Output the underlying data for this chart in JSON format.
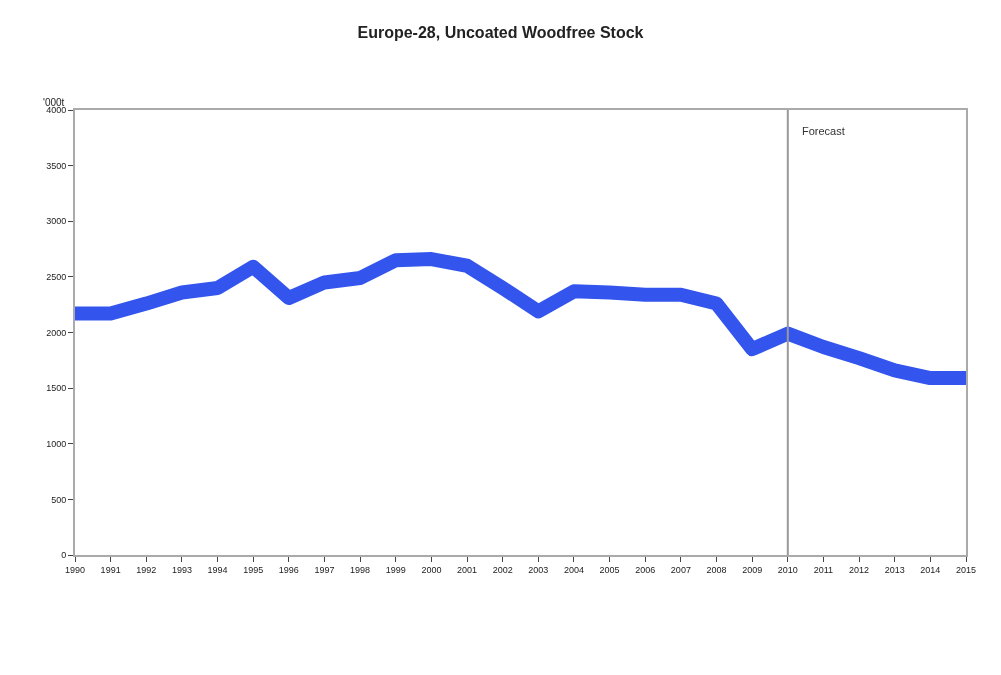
{
  "chart_data": {
    "type": "line",
    "title": "Europe-28, Uncoated Woodfree Stock",
    "ylabel": "'000t",
    "x": [
      1990,
      1991,
      1992,
      1993,
      1994,
      1995,
      1996,
      1997,
      1998,
      1999,
      2000,
      2001,
      2002,
      2003,
      2004,
      2005,
      2006,
      2007,
      2008,
      2009,
      2010,
      2011,
      2012,
      2013,
      2014,
      2015
    ],
    "series": [
      {
        "color": "#3355ee",
        "values": [
          2170,
          2170,
          2260,
          2360,
          2400,
          2590,
          2310,
          2450,
          2490,
          2650,
          2660,
          2600,
          2400,
          2190,
          2370,
          2360,
          2340,
          2340,
          2260,
          1850,
          1990,
          1870,
          1770,
          1660,
          1590,
          1590
        ]
      }
    ],
    "xlim": [
      1990,
      2015
    ],
    "xticks": [
      1990,
      1991,
      1992,
      1993,
      1994,
      1995,
      1996,
      1997,
      1998,
      1999,
      2000,
      2001,
      2002,
      2003,
      2004,
      2005,
      2006,
      2007,
      2008,
      2009,
      2010,
      2011,
      2012,
      2013,
      2014,
      2015
    ],
    "ylim": [
      0,
      4000
    ],
    "yticks": [
      0,
      500,
      1000,
      1500,
      2000,
      2500,
      3000,
      3500,
      4000
    ],
    "ref_lines": [
      {
        "axis": "x",
        "value": 2010,
        "label": "Forecast",
        "color": "#999999"
      }
    ],
    "line_style": "solid"
  }
}
